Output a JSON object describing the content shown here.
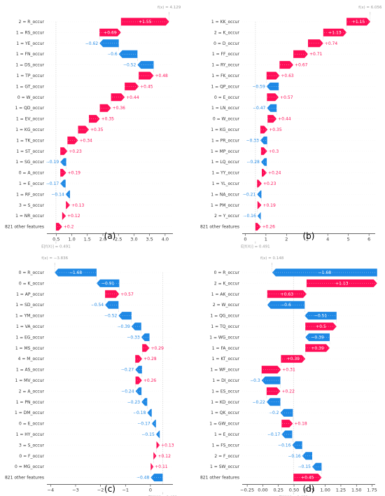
{
  "colors": {
    "positive": "#ff0d57",
    "negative": "#1e88e5",
    "axis": "#333333",
    "grid": "#cccccc"
  },
  "chart_data": [
    {
      "type": "waterfall",
      "panel": "(a)",
      "fx_label": "f(x) = 4.129",
      "fx": 4.129,
      "ex_label": "E[f(X)] = 0.491",
      "ex": 0.491,
      "xlim": [
        0.2,
        4.25
      ],
      "ticks": [
        0.5,
        1.0,
        1.5,
        2.0,
        2.5,
        3.0,
        3.5,
        4.0
      ],
      "tick_labels": [
        "0.5",
        "1.0",
        "1.5",
        "2.0",
        "2.5",
        "3.0",
        "3.5",
        "4.0"
      ],
      "features": [
        {
          "label": "2 = R_occur",
          "value": 1.55,
          "text": "+1.55"
        },
        {
          "label": "1 = RS_occur",
          "value": 0.69,
          "text": "+0.69"
        },
        {
          "label": "1 = YE_occur",
          "value": -0.62,
          "text": "−0.62"
        },
        {
          "label": "1 = FN_occur",
          "value": -0.6,
          "text": "−0.6"
        },
        {
          "label": "1 = DS_occur",
          "value": -0.52,
          "text": "−0.52"
        },
        {
          "label": "1 = TP_occur",
          "value": 0.48,
          "text": "+0.48"
        },
        {
          "label": "1 = GT_occur",
          "value": 0.45,
          "text": "+0.45"
        },
        {
          "label": "0 = W_occur",
          "value": 0.44,
          "text": "+0.44"
        },
        {
          "label": "1 = QD_occur",
          "value": 0.36,
          "text": "+0.36"
        },
        {
          "label": "1 = EV_occur",
          "value": 0.35,
          "text": "+0.35"
        },
        {
          "label": "1 = KG_occur",
          "value": 0.35,
          "text": "+0.35"
        },
        {
          "label": "1 = TK_occur",
          "value": 0.34,
          "text": "+0.34"
        },
        {
          "label": "1 = ST_occur",
          "value": 0.23,
          "text": "+0.23"
        },
        {
          "label": "1 = SG_occur",
          "value": -0.19,
          "text": "−0.19"
        },
        {
          "label": "0 = A_occur",
          "value": 0.19,
          "text": "+0.19"
        },
        {
          "label": "1 = E_occur",
          "value": -0.17,
          "text": "−0.17"
        },
        {
          "label": "1 = RF_occur",
          "value": -0.14,
          "text": "−0.14"
        },
        {
          "label": "3 = S_occur",
          "value": 0.13,
          "text": "+0.13"
        },
        {
          "label": "1 = NR_occur",
          "value": 0.12,
          "text": "+0.12"
        },
        {
          "label": "821 other features",
          "value": 0.2,
          "text": "+0.2"
        }
      ]
    },
    {
      "type": "waterfall",
      "panel": "(b)",
      "fx_label": "f(x) = 6.056",
      "fx": 6.056,
      "ex_label": "E[f(X)] = 0.491",
      "ex": 0.491,
      "xlim": [
        -0.15,
        6.3
      ],
      "ticks": [
        0,
        1,
        2,
        3,
        4,
        5,
        6
      ],
      "tick_labels": [
        "0",
        "1",
        "2",
        "3",
        "4",
        "5",
        "6"
      ],
      "features": [
        {
          "label": "1 = KK_occur",
          "value": 1.15,
          "text": "+1.15"
        },
        {
          "label": "2 = K_occur",
          "value": 1.13,
          "text": "+1.13"
        },
        {
          "label": "0 = D_occur",
          "value": 0.74,
          "text": "+0.74"
        },
        {
          "label": "1 = FF_occur",
          "value": 0.71,
          "text": "+0.71"
        },
        {
          "label": "1 = RY_occur",
          "value": 0.67,
          "text": "+0.67"
        },
        {
          "label": "1 = FK_occur",
          "value": 0.63,
          "text": "+0.63"
        },
        {
          "label": "1 = QP_occur",
          "value": -0.59,
          "text": "−0.59"
        },
        {
          "label": "0 = E_occur",
          "value": 0.57,
          "text": "+0.57"
        },
        {
          "label": "1 = LN_occur",
          "value": -0.47,
          "text": "−0.47"
        },
        {
          "label": "0 = W_occur",
          "value": 0.44,
          "text": "+0.44"
        },
        {
          "label": "1 = KG_occur",
          "value": 0.35,
          "text": "+0.35"
        },
        {
          "label": "1 = PR_occur",
          "value": -0.33,
          "text": "−0.33"
        },
        {
          "label": "1 = MP_occur",
          "value": 0.3,
          "text": "+0.3"
        },
        {
          "label": "1 = LQ_occur",
          "value": -0.28,
          "text": "−0.28"
        },
        {
          "label": "1 = YY_occur",
          "value": 0.24,
          "text": "+0.24"
        },
        {
          "label": "1 = YL_occur",
          "value": 0.23,
          "text": "+0.23"
        },
        {
          "label": "1 = NA_occur",
          "value": -0.21,
          "text": "−0.21"
        },
        {
          "label": "1 = PM_occur",
          "value": 0.19,
          "text": "+0.19"
        },
        {
          "label": "2 = Y_occur",
          "value": -0.16,
          "text": "−0.16"
        },
        {
          "label": "821 other features",
          "value": 0.26,
          "text": "+0.26"
        }
      ]
    },
    {
      "type": "waterfall",
      "panel": "(c)",
      "fx_label": "f(x) = −3.836",
      "fx": -3.836,
      "ex_label": "E[f(X)] = 0.491",
      "ex": 0.491,
      "xlim": [
        -4.15,
        0.9
      ],
      "ticks": [
        -4,
        -3,
        -2,
        -1,
        0
      ],
      "tick_labels": [
        "−4",
        "−3",
        "−2",
        "−1",
        "0"
      ],
      "features": [
        {
          "label": "0 = R_occur",
          "value": -1.68,
          "text": "−1.68"
        },
        {
          "label": "0 = K_occur",
          "value": -0.91,
          "text": "−0.91"
        },
        {
          "label": "1 = AP_occur",
          "value": 0.57,
          "text": "+0.57"
        },
        {
          "label": "1 = SD_occur",
          "value": -0.54,
          "text": "−0.54"
        },
        {
          "label": "1 = YM_occur",
          "value": -0.52,
          "text": "−0.52"
        },
        {
          "label": "1 = VA_occur",
          "value": -0.39,
          "text": "−0.39"
        },
        {
          "label": "1 = EG_occur",
          "value": -0.33,
          "text": "−0.33"
        },
        {
          "label": "1 = MS_occur",
          "value": 0.29,
          "text": "+0.29"
        },
        {
          "label": "4 = M_occur",
          "value": 0.28,
          "text": "+0.28"
        },
        {
          "label": "1 = AS_occur",
          "value": -0.27,
          "text": "−0.27"
        },
        {
          "label": "1 = MV_occur",
          "value": 0.26,
          "text": "+0.26"
        },
        {
          "label": "2 = A_occur",
          "value": -0.24,
          "text": "−0.24"
        },
        {
          "label": "1 = PN_occur",
          "value": -0.23,
          "text": "−0.23"
        },
        {
          "label": "1 = DM_occur",
          "value": -0.18,
          "text": "−0.18"
        },
        {
          "label": "0 = E_occur",
          "value": -0.17,
          "text": "−0.17"
        },
        {
          "label": "1 = HY_occur",
          "value": -0.15,
          "text": "−0.15"
        },
        {
          "label": "3 = S_occur",
          "value": 0.13,
          "text": "+0.13"
        },
        {
          "label": "0 = F_occur",
          "value": 0.12,
          "text": "+0.12"
        },
        {
          "label": "0 = MG_occur",
          "value": 0.11,
          "text": "+0.11"
        },
        {
          "label": "821 other features",
          "value": -0.48,
          "text": "−0.48"
        }
      ]
    },
    {
      "type": "waterfall",
      "panel": "(d)",
      "fx_label": "f(x) = 0.148",
      "fx": 0.148,
      "ex_label": "E[f(X)] = 0.491",
      "ex": 0.491,
      "xlim": [
        -0.33,
        1.8
      ],
      "ticks": [
        -0.25,
        0.0,
        0.25,
        0.5,
        0.75,
        1.0,
        1.25,
        1.5,
        1.75
      ],
      "tick_labels": [
        "−0.25",
        "0.00",
        "0.25",
        "0.50",
        "0.75",
        "1.00",
        "1.25",
        "1.50",
        "1.75"
      ],
      "features": [
        {
          "label": "0 = R_occur",
          "value": -1.68,
          "text": "−1.68"
        },
        {
          "label": "2 = K_occur",
          "value": 1.13,
          "text": "+1.13"
        },
        {
          "label": "1 = AK_occur",
          "value": 0.63,
          "text": "+0.63"
        },
        {
          "label": "2 = W_occur",
          "value": -0.6,
          "text": "−0.6"
        },
        {
          "label": "1 = QG_occur",
          "value": -0.51,
          "text": "−0.51"
        },
        {
          "label": "1 = TQ_occur",
          "value": 0.5,
          "text": "+0.5"
        },
        {
          "label": "1 = WG_occur",
          "value": -0.39,
          "text": "−0.39"
        },
        {
          "label": "1 = FA_occur",
          "value": 0.39,
          "text": "+0.39"
        },
        {
          "label": "1 = KT_occur",
          "value": 0.39,
          "text": "+0.39"
        },
        {
          "label": "1 = WF_occur",
          "value": 0.31,
          "text": "+0.31"
        },
        {
          "label": "1 = DI_occur",
          "value": -0.3,
          "text": "−0.3"
        },
        {
          "label": "1 = ES_occur",
          "value": 0.22,
          "text": "+0.22"
        },
        {
          "label": "1 = KD_occur",
          "value": -0.22,
          "text": "−0.22"
        },
        {
          "label": "1 = QK_occur",
          "value": -0.2,
          "text": "−0.2"
        },
        {
          "label": "1 = GW_occur",
          "value": 0.18,
          "text": "+0.18"
        },
        {
          "label": "1 = E_occur",
          "value": -0.17,
          "text": "−0.17"
        },
        {
          "label": "1 = FS_occur",
          "value": -0.16,
          "text": "−0.16"
        },
        {
          "label": "2 = F_occur",
          "value": -0.16,
          "text": "−0.16"
        },
        {
          "label": "1 = SW_occur",
          "value": -0.15,
          "text": "−0.15"
        },
        {
          "label": "821 other features",
          "value": 0.45,
          "text": "+0.45"
        }
      ]
    }
  ]
}
